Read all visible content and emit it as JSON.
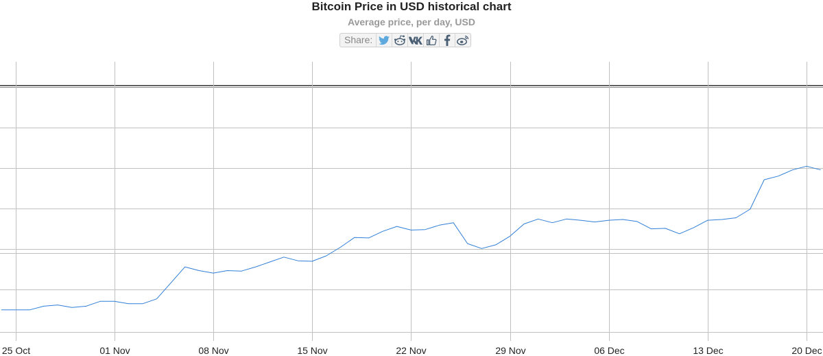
{
  "header": {
    "title": "Bitcoin Price in USD historical chart",
    "subtitle": "Average price, per day, USD",
    "share_label": "Share:"
  },
  "share_icons": [
    "twitter-icon",
    "reddit-icon",
    "vk-icon",
    "like-icon",
    "facebook-icon",
    "weibo-icon"
  ],
  "colors": {
    "line": "#2f7ed8",
    "grid": "#c0c0c0",
    "frame": "#000000",
    "twitter": "#5ea9dd",
    "icons": "#4a5f74"
  },
  "chart_data": {
    "type": "line",
    "x_ticks": [
      "25 Oct",
      "01 Nov",
      "08 Nov",
      "15 Nov",
      "22 Nov",
      "29 Nov",
      "06 Dec",
      "13 Dec",
      "20 Dec"
    ],
    "x_start": "2018-10-24",
    "y_range": [
      0,
      1
    ],
    "y_label": "",
    "grid": true,
    "series": [
      {
        "values": [
          0.09,
          0.09,
          0.09,
          0.105,
          0.11,
          0.1,
          0.105,
          0.125,
          0.125,
          0.115,
          0.115,
          0.135,
          0.2,
          0.265,
          0.25,
          0.24,
          0.25,
          0.248,
          0.265,
          0.285,
          0.305,
          0.29,
          0.288,
          0.31,
          0.345,
          0.385,
          0.383,
          0.41,
          0.43,
          0.415,
          0.417,
          0.435,
          0.445,
          0.36,
          0.34,
          0.355,
          0.39,
          0.44,
          0.46,
          0.445,
          0.46,
          0.455,
          0.448,
          0.455,
          0.458,
          0.45,
          0.42,
          0.422,
          0.4,
          0.425,
          0.455,
          0.458,
          0.465,
          0.5,
          0.62,
          0.635,
          0.66,
          0.675,
          0.66
        ]
      }
    ]
  }
}
